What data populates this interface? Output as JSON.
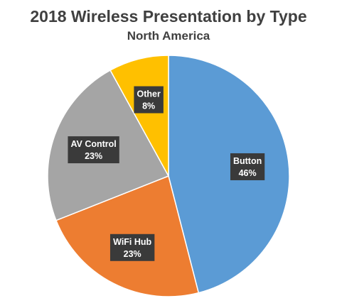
{
  "chart_data": {
    "type": "pie",
    "title": "2018 Wireless Presentation by Type",
    "subtitle": "North America",
    "start_angle_deg": 0,
    "direction": "clockwise",
    "slices": [
      {
        "label": "Button",
        "percent_label": "46%",
        "value": 46,
        "color": "#5B9BD5"
      },
      {
        "label": "WiFi Hub",
        "percent_label": "23%",
        "value": 23,
        "color": "#ED7D31"
      },
      {
        "label": "AV Control",
        "percent_label": "23%",
        "value": 23,
        "color": "#A5A5A5"
      },
      {
        "label": "Other",
        "percent_label": "8%",
        "value": 8,
        "color": "#FFC000"
      }
    ]
  }
}
